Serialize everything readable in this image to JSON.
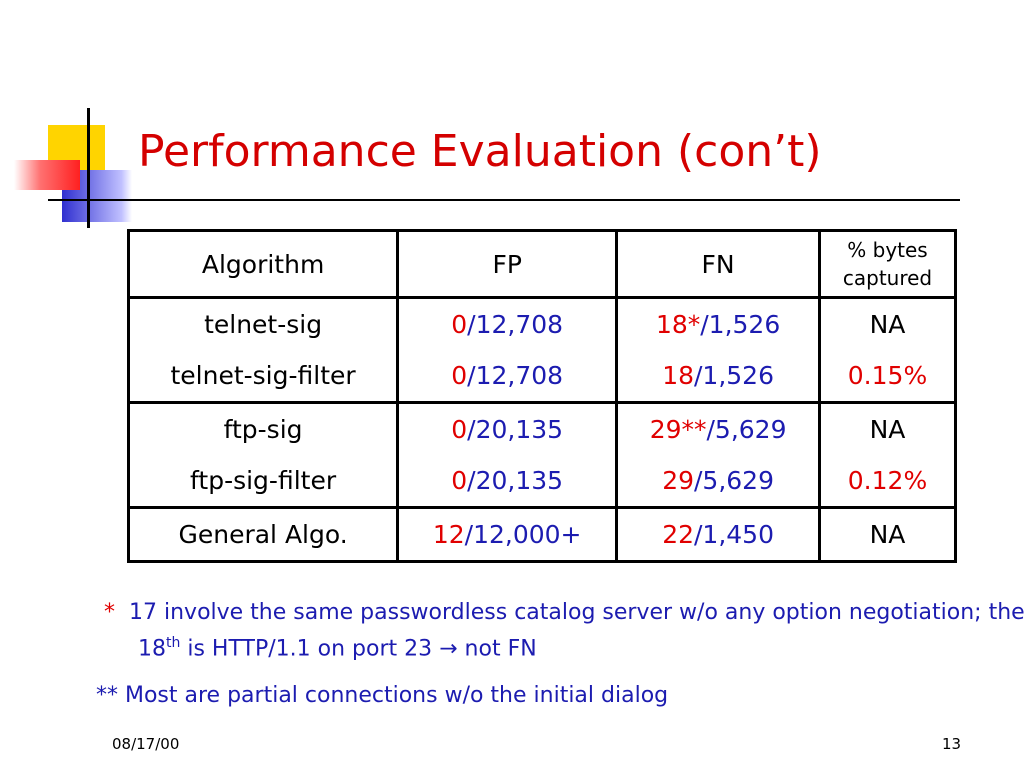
{
  "slide": {
    "title": "Performance Evaluation (con’t)",
    "colors": {
      "red": "#e00000",
      "blue": "#1c1cb0",
      "black": "#000000"
    },
    "table": {
      "header": [
        "Algorithm",
        "FP",
        "FN",
        "% bytes captured"
      ],
      "groups": [
        [
          [
            [
              {
                "text": "telnet-sig",
                "color": "black"
              }
            ],
            [
              {
                "text": "0",
                "color": "red"
              },
              {
                "text": "/12,708",
                "color": "blue"
              }
            ],
            [
              {
                "text": "18*",
                "color": "red"
              },
              {
                "text": "/1,526",
                "color": "blue"
              }
            ],
            [
              {
                "text": "NA",
                "color": "black"
              }
            ]
          ],
          [
            [
              {
                "text": "telnet-sig-filter",
                "color": "black"
              }
            ],
            [
              {
                "text": "0",
                "color": "red"
              },
              {
                "text": "/12,708",
                "color": "blue"
              }
            ],
            [
              {
                "text": "18",
                "color": "red"
              },
              {
                "text": "/1,526",
                "color": "blue"
              }
            ],
            [
              {
                "text": "0.15%",
                "color": "red"
              }
            ]
          ]
        ],
        [
          [
            [
              {
                "text": "ftp-sig",
                "color": "black"
              }
            ],
            [
              {
                "text": "0",
                "color": "red"
              },
              {
                "text": "/20,135",
                "color": "blue"
              }
            ],
            [
              {
                "text": "29**",
                "color": "red"
              },
              {
                "text": "/5,629",
                "color": "blue"
              }
            ],
            [
              {
                "text": "NA",
                "color": "black"
              }
            ]
          ],
          [
            [
              {
                "text": "ftp-sig-filter",
                "color": "black"
              }
            ],
            [
              {
                "text": "0",
                "color": "red"
              },
              {
                "text": "/20,135",
                "color": "blue"
              }
            ],
            [
              {
                "text": "29",
                "color": "red"
              },
              {
                "text": "/5,629",
                "color": "blue"
              }
            ],
            [
              {
                "text": "0.12%",
                "color": "red"
              }
            ]
          ]
        ],
        [
          [
            [
              {
                "text": "General Algo.",
                "color": "black"
              }
            ],
            [
              {
                "text": "12",
                "color": "red"
              },
              {
                "text": "/12,000+",
                "color": "blue"
              }
            ],
            [
              {
                "text": "22",
                "color": "red"
              },
              {
                "text": "/1,450",
                "color": "blue"
              }
            ],
            [
              {
                "text": "NA",
                "color": "black"
              }
            ]
          ]
        ]
      ]
    },
    "notes": [
      [
        {
          "text": "*",
          "color": "red"
        },
        {
          "text": "17 involve the same passwordless catalog server w/o any option negotiation; the 18",
          "color": "blue"
        },
        {
          "text": "th",
          "color": "blue",
          "sup": true
        },
        {
          "text": " is HTTP/1.1 on port 23 ",
          "color": "blue"
        },
        {
          "text": "→",
          "color": "blue"
        },
        {
          "text": " not FN",
          "color": "blue"
        }
      ],
      [
        {
          "text": "** Most are partial connections w/o the initial dialog",
          "color": "blue"
        }
      ]
    ],
    "footer": {
      "date": "08/17/00",
      "page": "13"
    }
  }
}
